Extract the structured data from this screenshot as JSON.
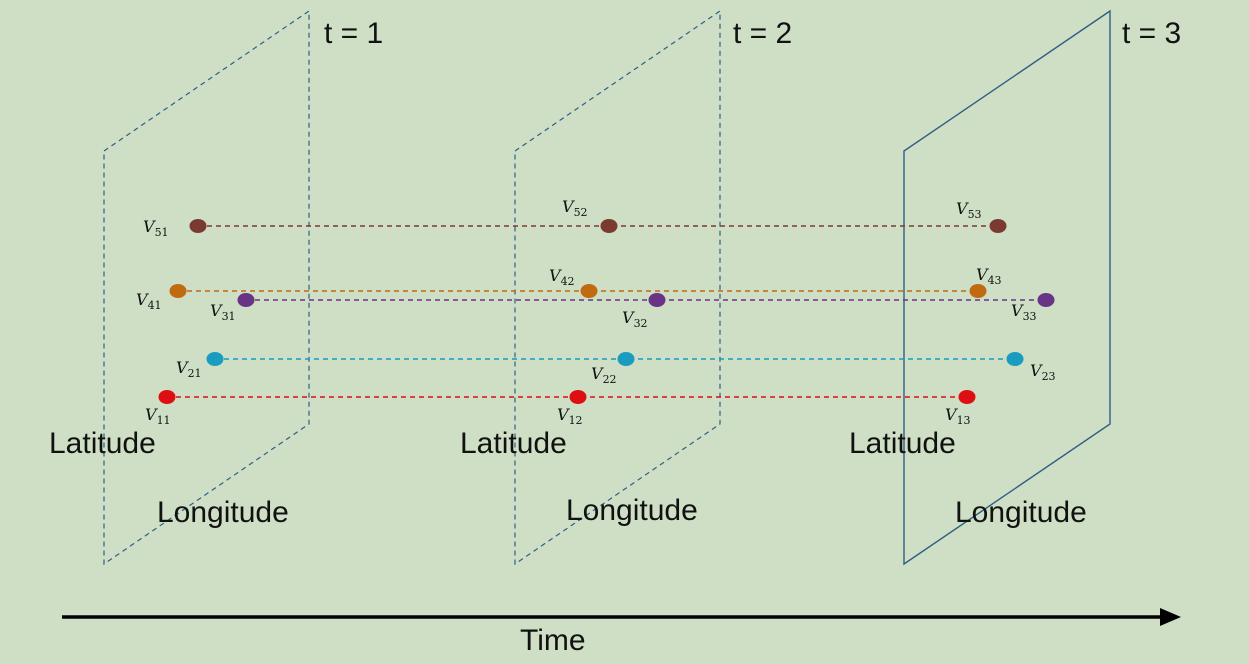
{
  "time_labels": [
    "t = 1",
    "t = 2",
    "t = 3"
  ],
  "axis_labels": {
    "latitude": "Latitude",
    "longitude": "Longitude"
  },
  "time_axis_label": "Time",
  "variable_prefix": "V",
  "variables": [
    {
      "id": "5",
      "color": "#7b3a2f",
      "subscripts": [
        "51",
        "52",
        "53"
      ]
    },
    {
      "id": "4",
      "color": "#c06a12",
      "subscripts": [
        "41",
        "42",
        "43"
      ]
    },
    {
      "id": "3",
      "color": "#6a3486",
      "subscripts": [
        "31",
        "32",
        "33"
      ]
    },
    {
      "id": "2",
      "color": "#1a9cc0",
      "subscripts": [
        "21",
        "22",
        "23"
      ]
    },
    {
      "id": "1",
      "color": "#dd0f12",
      "subscripts": [
        "11",
        "12",
        "13"
      ]
    }
  ],
  "plane_edge_color": "#2e5f86",
  "axis_arrow_color": "#000000"
}
